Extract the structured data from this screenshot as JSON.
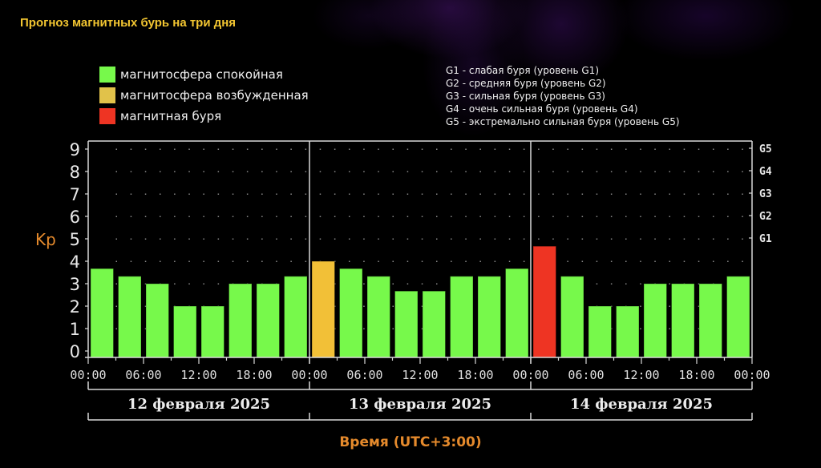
{
  "header": {
    "title": "Прогноз магнитных бурь на три дня"
  },
  "legend": {
    "items": [
      {
        "label": "магнитосфера спокойная",
        "color": "#77f94b"
      },
      {
        "label": "магнитосфера возбужденная",
        "color": "#f2c037"
      },
      {
        "label": "магнитная буря",
        "color": "#ee3423"
      }
    ]
  },
  "g_legend": {
    "items": [
      "G1 - слабая буря (уровень G1)",
      "G2 - средняя буря (уровень G2)",
      "G3 - сильная буря (уровень G3)",
      "G4 - очень сильная буря (уровень G4)",
      "G5 - экстремально сильная буря (уровень G5)"
    ]
  },
  "colors": {
    "quiet": "#77f94b",
    "active": "#f2c037",
    "storm": "#ee3423",
    "axis": "#d8d8d8",
    "kp_label": "#e58a2c",
    "title": "#f3c631"
  },
  "chart_data": {
    "type": "bar",
    "title": "Прогноз магнитных бурь на три дня",
    "xlabel": "Время (UTC+3:00)",
    "ylabel": "Kp",
    "ylim": [
      0,
      9
    ],
    "y_ticks": [
      0,
      1,
      2,
      3,
      4,
      5,
      6,
      7,
      8,
      9
    ],
    "right_ticks": [
      {
        "value": 5,
        "label": "G1"
      },
      {
        "value": 6,
        "label": "G2"
      },
      {
        "value": 7,
        "label": "G3"
      },
      {
        "value": 8,
        "label": "G4"
      },
      {
        "value": 9,
        "label": "G5"
      }
    ],
    "x_tick_labels": [
      "00:00",
      "06:00",
      "12:00",
      "18:00",
      "00:00",
      "06:00",
      "12:00",
      "18:00",
      "00:00",
      "06:00",
      "12:00",
      "18:00",
      "00:00"
    ],
    "days": [
      "12 февраля 2025",
      "13 февраля 2025",
      "14 февраля 2025"
    ],
    "categories": [
      "12.02 00-03",
      "12.02 03-06",
      "12.02 06-09",
      "12.02 09-12",
      "12.02 12-15",
      "12.02 15-18",
      "12.02 18-21",
      "12.02 21-24",
      "13.02 00-03",
      "13.02 03-06",
      "13.02 06-09",
      "13.02 09-12",
      "13.02 12-15",
      "13.02 15-18",
      "13.02 18-21",
      "13.02 21-24",
      "14.02 00-03",
      "14.02 03-06",
      "14.02 06-09",
      "14.02 09-12",
      "14.02 12-15",
      "14.02 15-18",
      "14.02 18-21",
      "14.02 21-24"
    ],
    "values": [
      3.67,
      3.33,
      3.0,
      2.0,
      2.0,
      3.0,
      3.0,
      3.33,
      4.0,
      3.67,
      3.33,
      2.67,
      2.67,
      3.33,
      3.33,
      3.67,
      4.67,
      3.33,
      2.0,
      2.0,
      3.0,
      3.0,
      3.0,
      3.33
    ],
    "states": [
      "quiet",
      "quiet",
      "quiet",
      "quiet",
      "quiet",
      "quiet",
      "quiet",
      "quiet",
      "active",
      "quiet",
      "quiet",
      "quiet",
      "quiet",
      "quiet",
      "quiet",
      "quiet",
      "storm",
      "quiet",
      "quiet",
      "quiet",
      "quiet",
      "quiet",
      "quiet",
      "quiet"
    ],
    "grid": "dotted",
    "legend_position": "top"
  }
}
